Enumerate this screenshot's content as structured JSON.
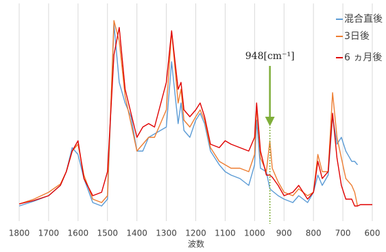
{
  "chart_data": {
    "type": "line",
    "x_label": "波数",
    "x": [
      1800,
      1750,
      1700,
      1660,
      1640,
      1620,
      1600,
      1580,
      1550,
      1520,
      1500,
      1478,
      1460,
      1440,
      1420,
      1400,
      1380,
      1360,
      1340,
      1300,
      1282,
      1260,
      1250,
      1240,
      1220,
      1200,
      1185,
      1170,
      1150,
      1120,
      1100,
      1080,
      1050,
      1020,
      1000,
      993,
      980,
      960,
      948,
      940,
      920,
      900,
      870,
      850,
      820,
      800,
      785,
      770,
      750,
      735,
      720,
      705,
      690,
      670,
      660,
      650,
      640,
      620,
      600
    ],
    "series": [
      {
        "name": "混合直後",
        "color": "#5b9bd5",
        "values": [
          22,
          29,
          37,
          52,
          72,
          107,
          97,
          62,
          27,
          22,
          32,
          287,
          202,
          172,
          152,
          102,
          102,
          122,
          127,
          137,
          232,
          142,
          172,
          132,
          122,
          147,
          157,
          142,
          102,
          82,
          72,
          67,
          62,
          52,
          82,
          147,
          77,
          72,
          47,
          44,
          37,
          32,
          27,
          37,
          27,
          42,
          67,
          52,
          67,
          152,
          112,
          122,
          102,
          87,
          87,
          82,
          null,
          null,
          null
        ]
      },
      {
        "name": "3日後",
        "color": "#ed7d31",
        "values": [
          25,
          32,
          42,
          54,
          72,
          102,
          112,
          67,
          32,
          27,
          37,
          292,
          262,
          182,
          142,
          102,
          112,
          122,
          122,
          162,
          277,
          172,
          192,
          147,
          137,
          152,
          162,
          147,
          107,
          87,
          82,
          77,
          77,
          72,
          97,
          167,
          92,
          72,
          117,
          77,
          57,
          42,
          37,
          47,
          37,
          42,
          97,
          72,
          72,
          187,
          122,
          92,
          62,
          52,
          42,
          22,
          null,
          null,
          null
        ]
      },
      {
        "name": "6 ヵ月後",
        "color": "#e00000",
        "values": [
          25,
          30,
          37,
          52,
          72,
          102,
          117,
          62,
          37,
          42,
          72,
          242,
          282,
          192,
          157,
          122,
          137,
          142,
          137,
          202,
          277,
          192,
          202,
          162,
          152,
          162,
          172,
          152,
          112,
          107,
          117,
          112,
          107,
          102,
          122,
          172,
          102,
          67,
          67,
          64,
          52,
          37,
          42,
          52,
          32,
          42,
          87,
          62,
          72,
          157,
          92,
          52,
          32,
          32,
          22,
          22,
          24,
          24,
          24
        ]
      }
    ],
    "xlim": [
      1800,
      600
    ],
    "xticks": [
      1800,
      1700,
      1600,
      1500,
      1400,
      1300,
      1200,
      1100,
      1000,
      900,
      800,
      700,
      600
    ],
    "ylim": [
      0,
      317
    ],
    "grid": true,
    "legend": "top-right",
    "annotation": {
      "text": "948[cm⁻¹]",
      "x": 948,
      "color": "#7fae3a"
    }
  }
}
